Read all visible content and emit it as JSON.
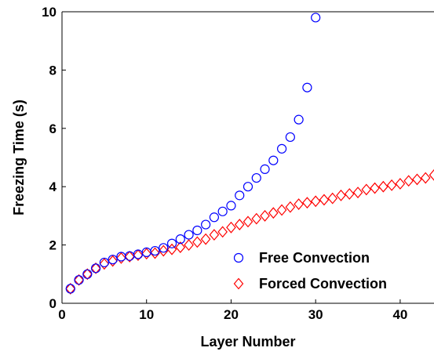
{
  "chart_data": {
    "type": "scatter",
    "title": "",
    "xlabel": "Layer Number",
    "ylabel": "Freezing Time (s)",
    "xlim": [
      0,
      44
    ],
    "ylim": [
      0,
      10
    ],
    "x_ticks": [
      0,
      10,
      20,
      30,
      40
    ],
    "y_ticks": [
      0,
      2,
      4,
      6,
      8,
      10
    ],
    "grid": false,
    "legend_position": "bottom-right",
    "series": [
      {
        "name": "Free Convection",
        "marker": "circle",
        "color": "#0000ff",
        "x": [
          1,
          2,
          3,
          4,
          5,
          6,
          7,
          8,
          9,
          10,
          11,
          12,
          13,
          14,
          15,
          16,
          17,
          18,
          19,
          20,
          21,
          22,
          23,
          24,
          25,
          26,
          27,
          28,
          29,
          30
        ],
        "y": [
          0.5,
          0.8,
          1.0,
          1.2,
          1.4,
          1.5,
          1.6,
          1.62,
          1.68,
          1.75,
          1.8,
          1.9,
          2.05,
          2.2,
          2.35,
          2.5,
          2.7,
          2.95,
          3.15,
          3.35,
          3.7,
          4.0,
          4.3,
          4.6,
          4.9,
          5.3,
          5.7,
          6.3,
          7.4,
          9.8
        ]
      },
      {
        "name": "Forced Convection",
        "marker": "diamond",
        "color": "#ff0000",
        "x": [
          1,
          2,
          3,
          4,
          5,
          6,
          7,
          8,
          9,
          10,
          11,
          12,
          13,
          14,
          15,
          16,
          17,
          18,
          19,
          20,
          21,
          22,
          23,
          24,
          25,
          26,
          27,
          28,
          29,
          30,
          31,
          32,
          33,
          34,
          35,
          36,
          37,
          38,
          39,
          40,
          41,
          42,
          43,
          44
        ],
        "y": [
          0.5,
          0.8,
          1.0,
          1.2,
          1.35,
          1.45,
          1.55,
          1.6,
          1.65,
          1.7,
          1.72,
          1.8,
          1.85,
          1.92,
          2.0,
          2.1,
          2.2,
          2.35,
          2.45,
          2.6,
          2.7,
          2.8,
          2.9,
          3.0,
          3.1,
          3.2,
          3.3,
          3.4,
          3.45,
          3.5,
          3.55,
          3.6,
          3.7,
          3.75,
          3.8,
          3.9,
          3.95,
          4.0,
          4.05,
          4.1,
          4.2,
          4.25,
          4.3,
          4.4
        ]
      }
    ]
  }
}
